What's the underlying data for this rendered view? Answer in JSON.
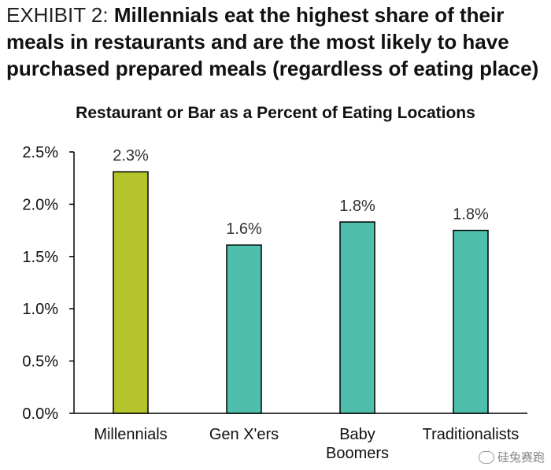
{
  "heading": {
    "prefix": "EXHIBIT 2:",
    "headline": "Millennials eat the highest share of their meals in restaurants and are the most likely to have purchased prepared meals (regardless of eating place)"
  },
  "watermark": {
    "text": "硅兔赛跑",
    "icon": "wechat-icon"
  },
  "colors": {
    "highlight": "#b5c42a",
    "bar": "#4fbfad",
    "axis": "#000000"
  },
  "chart_data": {
    "type": "bar",
    "title": "Restaurant or Bar as a Percent of Eating Locations",
    "xlabel": "",
    "ylabel": "",
    "categories": [
      [
        "Millennials"
      ],
      [
        "Gen X'ers"
      ],
      [
        "Baby",
        "Boomers"
      ],
      [
        "Traditionalists"
      ]
    ],
    "values": [
      2.31,
      1.61,
      1.83,
      1.75
    ],
    "data_labels": [
      "2.3%",
      "1.6%",
      "1.8%",
      "1.8%"
    ],
    "y_ticks": [
      "0.0%",
      "0.5%",
      "1.0%",
      "1.5%",
      "2.0%",
      "2.5%"
    ],
    "ylim": [
      0,
      2.5
    ],
    "grid": false,
    "legend": "none"
  }
}
